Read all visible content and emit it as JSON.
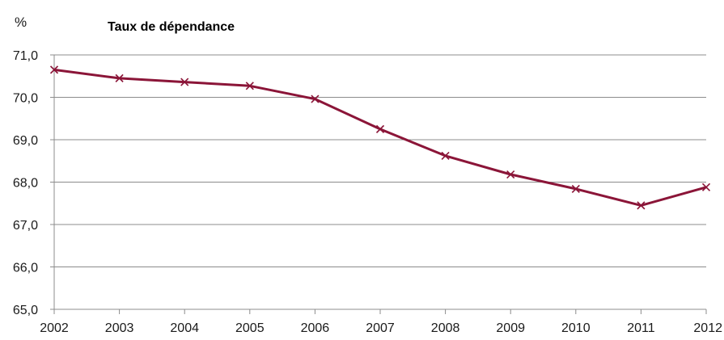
{
  "chart_data": {
    "type": "line",
    "title": "Taux de dépendance",
    "unit_label": "%",
    "xlabel": "",
    "ylabel": "",
    "categories": [
      "2002",
      "2003",
      "2004",
      "2005",
      "2006",
      "2007",
      "2008",
      "2009",
      "2010",
      "2011",
      "2012"
    ],
    "series": [
      {
        "values": [
          70.65,
          70.45,
          70.36,
          70.27,
          69.96,
          69.25,
          68.62,
          68.18,
          67.84,
          67.45,
          67.88
        ],
        "color": "#8b1538",
        "marker": "x"
      }
    ],
    "ylim": [
      65.0,
      71.0
    ],
    "yticks": [
      71.0,
      70.0,
      69.0,
      68.0,
      67.0,
      66.0,
      65.0
    ],
    "ytick_labels": [
      "71,0",
      "70,0",
      "69,0",
      "68,0",
      "67,0",
      "66,0",
      "65,0"
    ],
    "grid": true,
    "grid_color": "#8c8c8c",
    "legend": false
  }
}
